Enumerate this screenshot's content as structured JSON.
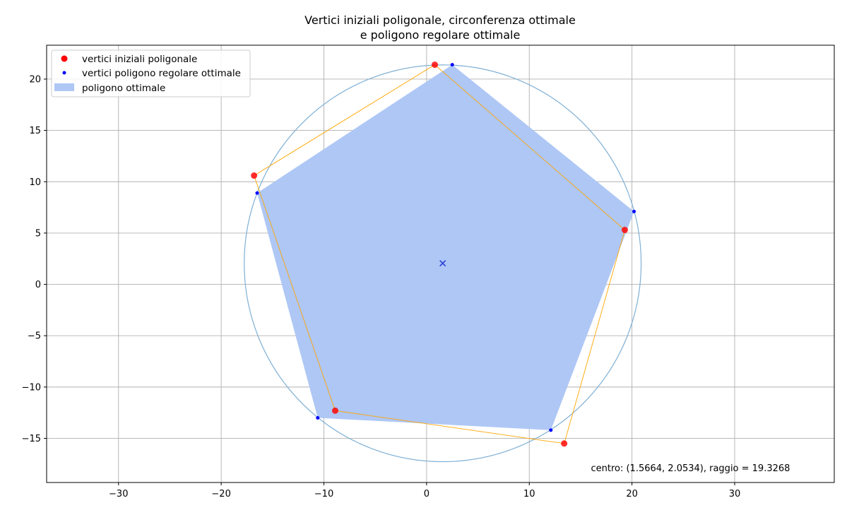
{
  "chart_data": {
    "type": "scatter",
    "title_lines": [
      "Vertici iniziali poligonale, circonferenza ottimale",
      "e poligono regolare ottimale"
    ],
    "xlabel": "",
    "ylabel": "",
    "xlim": [
      -37.0,
      39.7
    ],
    "ylim": [
      -19.3,
      23.3
    ],
    "x_ticks": [
      -30,
      -20,
      -10,
      0,
      10,
      20,
      30
    ],
    "y_ticks": [
      -15,
      -10,
      -5,
      0,
      5,
      10,
      15,
      20
    ],
    "x_tick_labels": [
      "−30",
      "−20",
      "−10",
      "0",
      "10",
      "20",
      "30"
    ],
    "y_tick_labels": [
      "−15",
      "−10",
      "−5",
      "0",
      "5",
      "10",
      "15",
      "20"
    ],
    "grid": true,
    "legend_position": "top-left",
    "legend": [
      {
        "label": "vertici iniziali poligonale",
        "marker": "large-dot",
        "color": "#ff0000"
      },
      {
        "label": "vertici poligono regolare ottimale",
        "marker": "small-dot",
        "color": "#0000ff"
      },
      {
        "label": "poligono ottimale",
        "marker": "patch",
        "color": "#aec7f5"
      }
    ],
    "initial_vertices": {
      "x": [
        0.8,
        19.3,
        13.4,
        -8.9,
        -16.8
      ],
      "y": [
        21.4,
        5.3,
        -15.5,
        -12.3,
        10.6
      ]
    },
    "polyline_color": "#ffa500",
    "regular_polygon_vertices": {
      "x": [
        2.5,
        20.2,
        12.1,
        -10.6,
        -16.5
      ],
      "y": [
        21.4,
        7.1,
        -14.2,
        -13.0,
        8.9
      ]
    },
    "fill_color": "#aec7f5",
    "circle": {
      "cx": 1.5664,
      "cy": 2.0534,
      "r": 19.3268,
      "color": "#7fb0d5"
    },
    "center_marker": {
      "x": 1.5664,
      "y": 2.0534,
      "symbol": "x",
      "color": "#2a3fd6"
    },
    "annotation": {
      "text": "centro: (1.5664, 2.0534), raggio = 19.3268",
      "x": 16.0,
      "y": -17.9
    }
  }
}
